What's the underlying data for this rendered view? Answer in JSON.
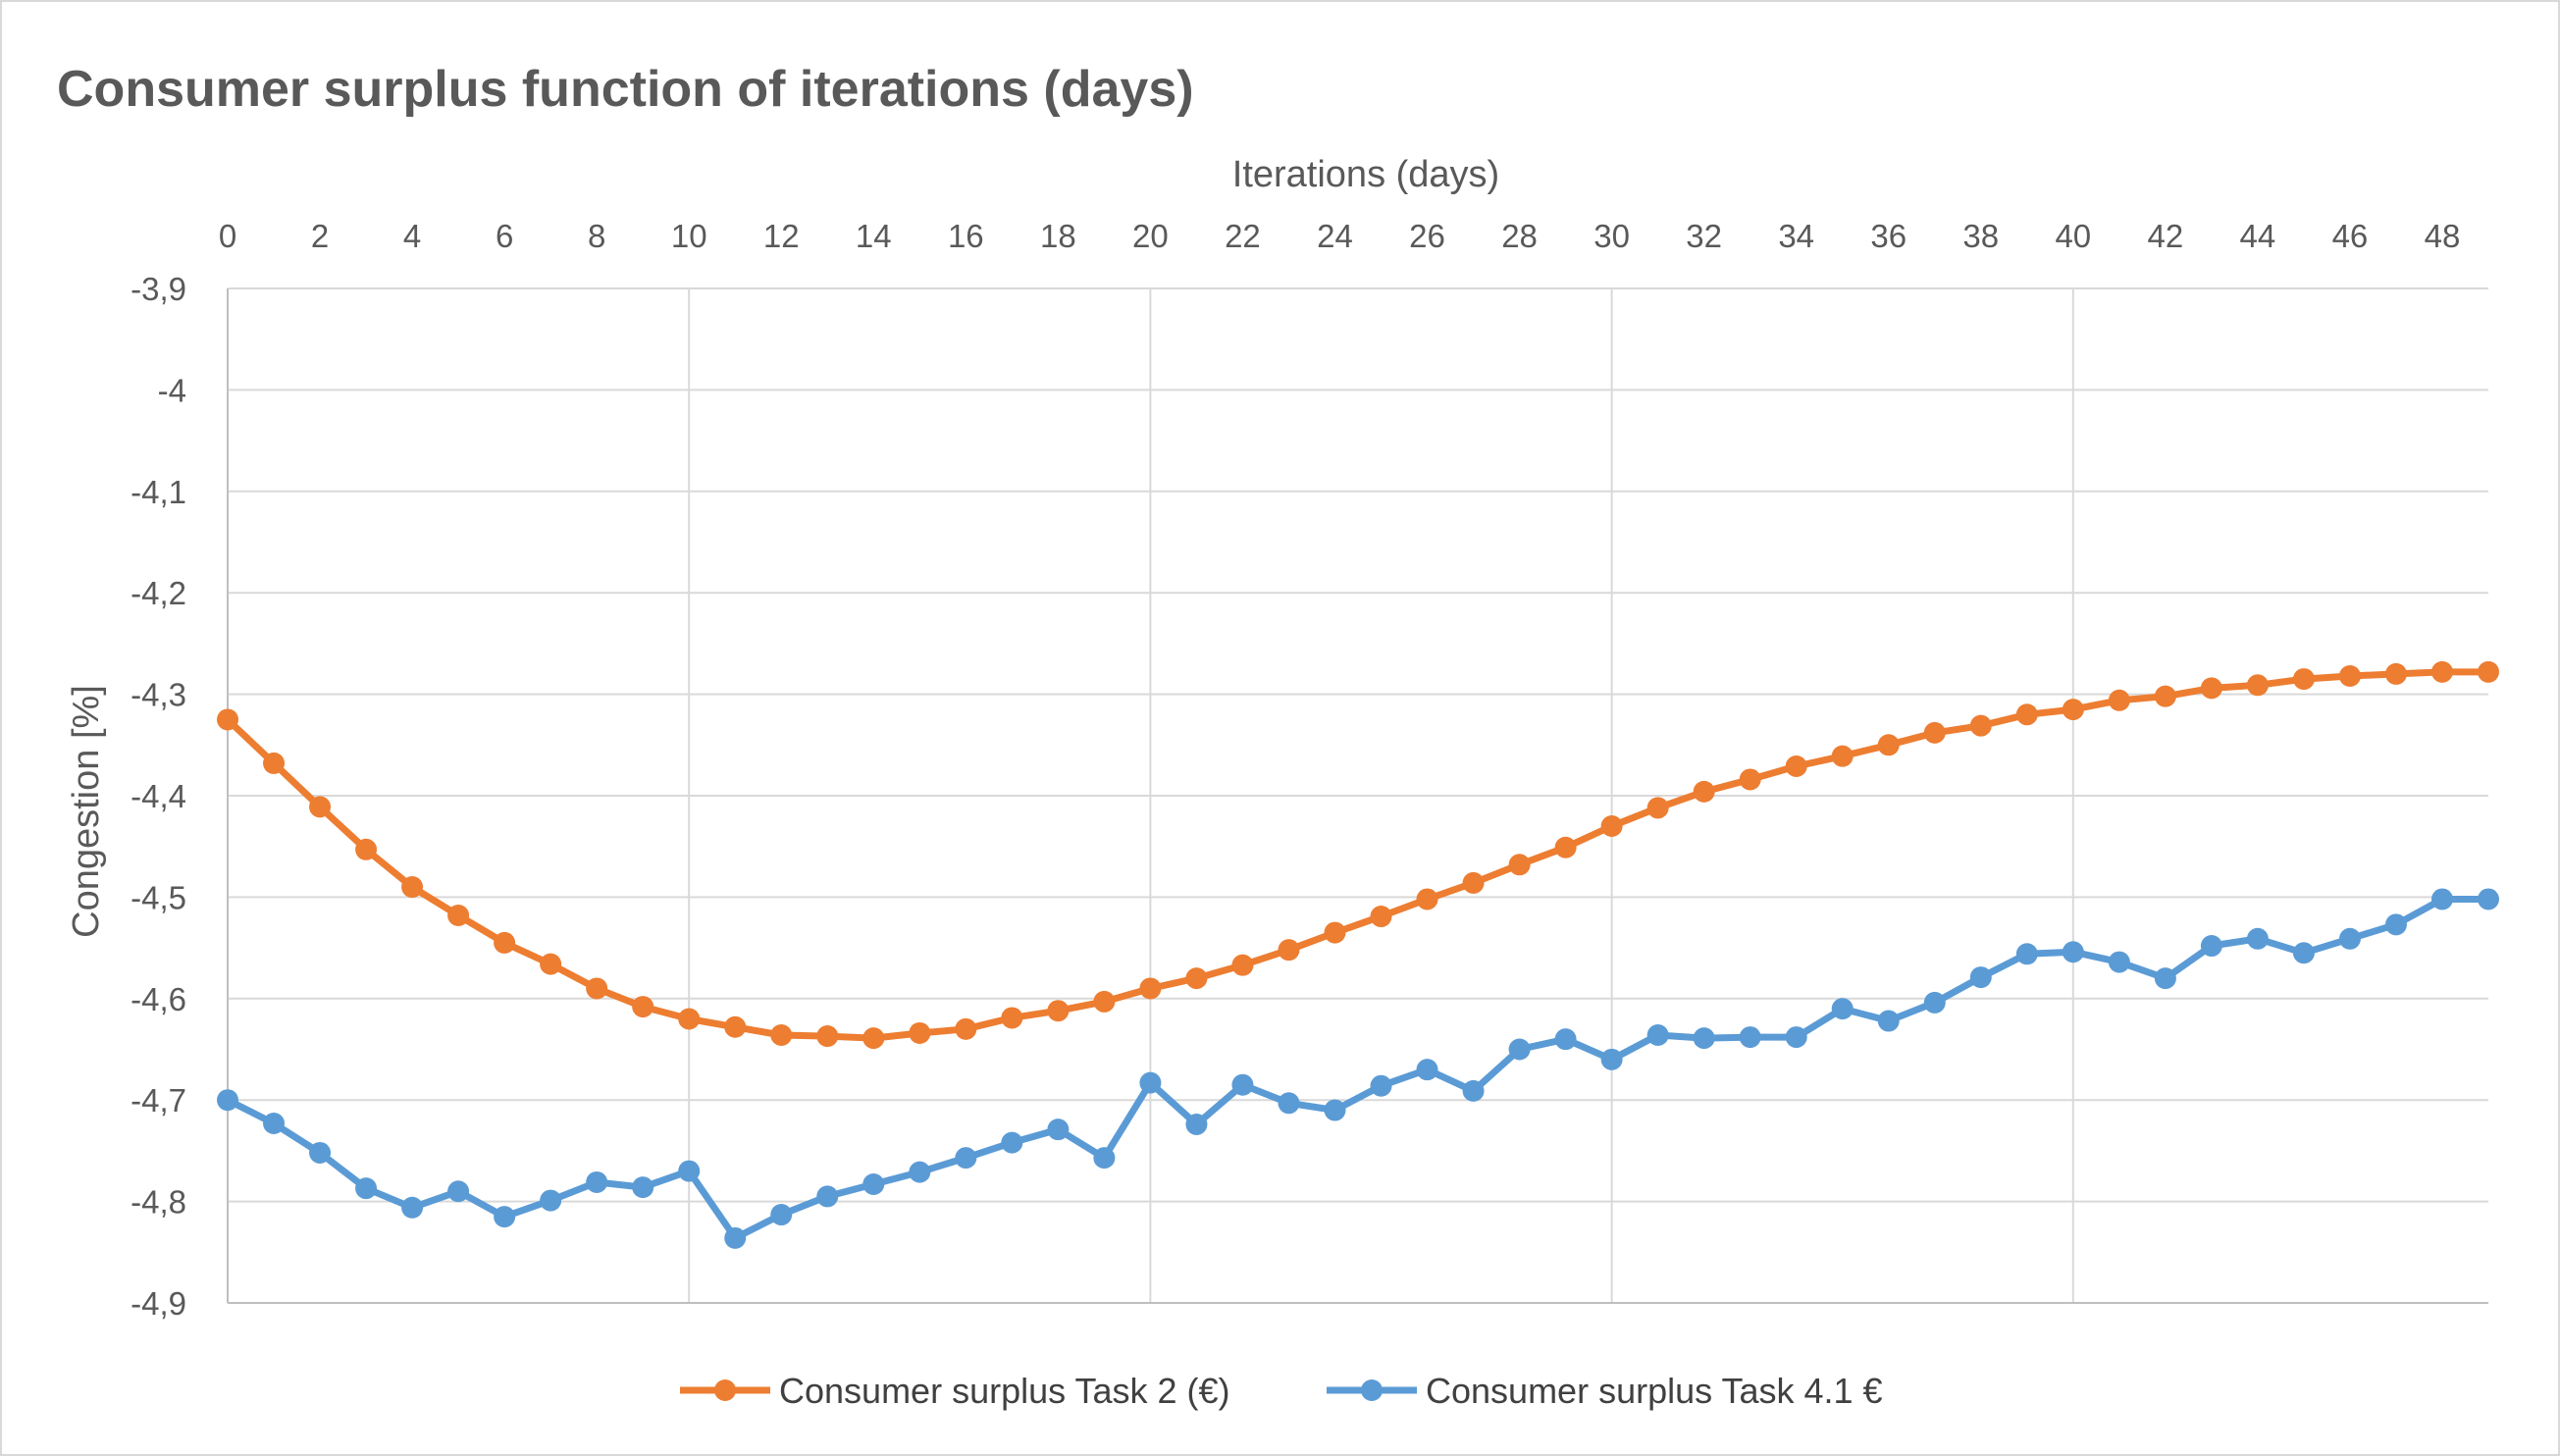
{
  "chart_data": {
    "type": "line",
    "title": "Consumer surplus function of iterations (days)",
    "xlabel": "Iterations (days)",
    "ylabel": "Congestion [%]",
    "x_axis_position": "top",
    "xlim": [
      0,
      49
    ],
    "ylim": [
      -4.9,
      -3.9
    ],
    "x_ticks": [
      0,
      2,
      4,
      6,
      8,
      10,
      12,
      14,
      16,
      18,
      20,
      22,
      24,
      26,
      28,
      30,
      32,
      34,
      36,
      38,
      40,
      42,
      44,
      46,
      48
    ],
    "x_tick_labels": [
      "0",
      "2",
      "4",
      "6",
      "8",
      "10",
      "12",
      "14",
      "16",
      "18",
      "20",
      "22",
      "24",
      "26",
      "28",
      "30",
      "32",
      "34",
      "36",
      "38",
      "40",
      "42",
      "44",
      "46",
      "48"
    ],
    "y_ticks": [
      -3.9,
      -4.0,
      -4.1,
      -4.2,
      -4.3,
      -4.4,
      -4.5,
      -4.6,
      -4.7,
      -4.8,
      -4.9
    ],
    "y_tick_labels": [
      "-3,9",
      "-4",
      "-4,1",
      "-4,2",
      "-4,3",
      "-4,4",
      "-4,5",
      "-4,6",
      "-4,7",
      "-4,8",
      "-4,9"
    ],
    "vertical_gridlines_at": [
      10,
      20,
      30,
      40
    ],
    "grid": true,
    "legend_position": "bottom",
    "x": [
      0,
      1,
      2,
      3,
      4,
      5,
      6,
      7,
      8,
      9,
      10,
      11,
      12,
      13,
      14,
      15,
      16,
      17,
      18,
      19,
      20,
      21,
      22,
      23,
      24,
      25,
      26,
      27,
      28,
      29,
      30,
      31,
      32,
      33,
      34,
      35,
      36,
      37,
      38,
      39,
      40,
      41,
      42,
      43,
      44,
      45,
      46,
      47,
      48,
      49
    ],
    "series": [
      {
        "name": "Consumer surplus Task 2 (€)",
        "color": "#ED7D31",
        "values": [
          -4.325,
          -4.368,
          -4.411,
          -4.453,
          -4.49,
          -4.518,
          -4.545,
          -4.566,
          -4.59,
          -4.608,
          -4.62,
          -4.628,
          -4.636,
          -4.637,
          -4.639,
          -4.634,
          -4.63,
          -4.619,
          -4.612,
          -4.603,
          -4.59,
          -4.58,
          -4.567,
          -4.552,
          -4.535,
          -4.519,
          -4.502,
          -4.486,
          -4.468,
          -4.451,
          -4.43,
          -4.412,
          -4.396,
          -4.384,
          -4.371,
          -4.361,
          -4.35,
          -4.338,
          -4.331,
          -4.32,
          -4.315,
          -4.306,
          -4.302,
          -4.294,
          -4.291,
          -4.285,
          -4.282,
          -4.28,
          -4.278,
          -4.278
        ]
      },
      {
        "name": "Consumer surplus Task 4.1 €",
        "color": "#5B9BD5",
        "values": [
          -4.7,
          -4.723,
          -4.752,
          -4.787,
          -4.806,
          -4.79,
          -4.815,
          -4.799,
          -4.781,
          -4.786,
          -4.77,
          -4.836,
          -4.813,
          -4.795,
          -4.783,
          -4.771,
          -4.757,
          -4.742,
          -4.729,
          -4.757,
          -4.683,
          -4.724,
          -4.685,
          -4.703,
          -4.71,
          -4.686,
          -4.67,
          -4.691,
          -4.65,
          -4.64,
          -4.66,
          -4.636,
          -4.639,
          -4.638,
          -4.638,
          -4.61,
          -4.622,
          -4.604,
          -4.579,
          -4.556,
          -4.554,
          -4.564,
          -4.58,
          -4.548,
          -4.541,
          -4.555,
          -4.541,
          -4.527,
          -4.502,
          -4.502
        ]
      }
    ]
  }
}
